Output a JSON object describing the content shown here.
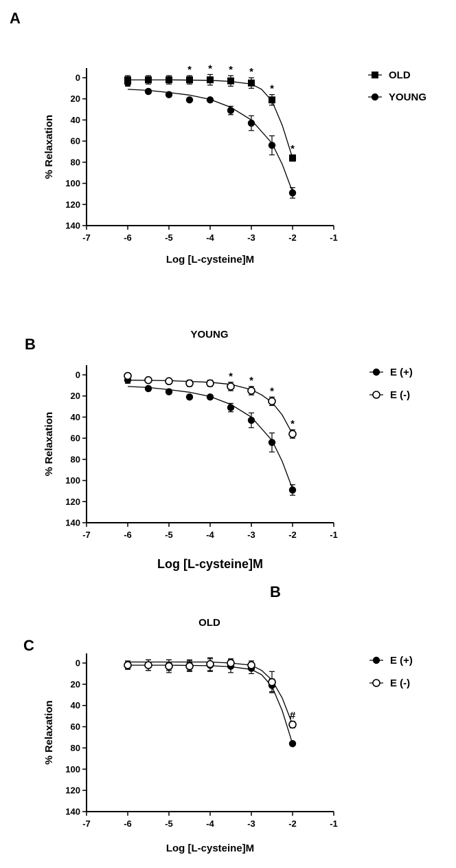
{
  "stray_label": "B",
  "chart_data": [
    {
      "id": "A",
      "type": "line",
      "panel_label": "A",
      "title": "",
      "xlabel": "Log [L-cysteine]M",
      "ylabel": "% Relaxation",
      "xlim": [
        -7,
        -1
      ],
      "ylim": [
        0,
        140
      ],
      "y_inverted": true,
      "xticks": [
        -7,
        -6,
        -5,
        -4,
        -3,
        -2,
        -1
      ],
      "yticks": [
        0,
        20,
        40,
        60,
        80,
        100,
        120,
        140
      ],
      "series": [
        {
          "name": "OLD",
          "marker": "square",
          "x": [
            -6,
            -5.5,
            -5,
            -4.5,
            -4,
            -3.5,
            -3,
            -2.5,
            -2
          ],
          "y": [
            2,
            2,
            2,
            2,
            2,
            3,
            5,
            21,
            76
          ],
          "err": [
            4,
            4,
            4,
            4,
            5,
            5,
            5,
            5,
            3
          ],
          "annotations": [
            "",
            "",
            "",
            "*",
            "*",
            "*",
            "*",
            "*",
            "*"
          ],
          "fit": [
            [
              -6,
              2
            ],
            [
              -5,
              2
            ],
            [
              -4,
              2.5
            ],
            [
              -3.5,
              3.5
            ],
            [
              -3,
              6
            ],
            [
              -2.75,
              11
            ],
            [
              -2.5,
              22
            ],
            [
              -2.25,
              45
            ],
            [
              -2,
              76
            ]
          ]
        },
        {
          "name": "YOUNG",
          "marker": "circle-filled",
          "x": [
            -6,
            -5.5,
            -5,
            -4.5,
            -4,
            -3.5,
            -3,
            -2.5,
            -2
          ],
          "y": [
            5,
            13,
            16,
            21,
            21,
            31,
            43,
            64,
            109
          ],
          "err": [
            3,
            2,
            2,
            2,
            2,
            4,
            7,
            9,
            5
          ],
          "annotations": [
            "",
            "",
            "",
            "",
            "",
            "",
            "",
            "",
            ""
          ],
          "fit": [
            [
              -6,
              11
            ],
            [
              -5.5,
              12
            ],
            [
              -5,
              14
            ],
            [
              -4.5,
              16.5
            ],
            [
              -4,
              20.5
            ],
            [
              -3.5,
              28
            ],
            [
              -3,
              40
            ],
            [
              -2.5,
              62
            ],
            [
              -2.25,
              82
            ],
            [
              -2,
              108
            ]
          ]
        }
      ]
    },
    {
      "id": "B",
      "type": "line",
      "panel_label": "B",
      "title": "YOUNG",
      "xlabel": "Log [L-cysteine]M",
      "ylabel": "% Relaxation",
      "xlim": [
        -7,
        -1
      ],
      "ylim": [
        0,
        140
      ],
      "y_inverted": true,
      "xticks": [
        -7,
        -6,
        -5,
        -4,
        -3,
        -2,
        -1
      ],
      "yticks": [
        0,
        20,
        40,
        60,
        80,
        100,
        120,
        140
      ],
      "series": [
        {
          "name": "E (+)",
          "marker": "circle-filled",
          "x": [
            -6,
            -5.5,
            -5,
            -4.5,
            -4,
            -3.5,
            -3,
            -2.5,
            -2
          ],
          "y": [
            5,
            13,
            16,
            21,
            21,
            31,
            43,
            64,
            109
          ],
          "err": [
            3,
            2,
            2,
            2,
            2,
            4,
            7,
            9,
            5
          ],
          "annotations": [
            "",
            "",
            "",
            "",
            "",
            "",
            "",
            "",
            ""
          ],
          "fit": [
            [
              -6,
              11
            ],
            [
              -5.5,
              12
            ],
            [
              -5,
              14
            ],
            [
              -4.5,
              16.5
            ],
            [
              -4,
              20.5
            ],
            [
              -3.5,
              28
            ],
            [
              -3,
              40
            ],
            [
              -2.5,
              62
            ],
            [
              -2.25,
              82
            ],
            [
              -2,
              108
            ]
          ]
        },
        {
          "name": "E (-)",
          "marker": "circle-open",
          "x": [
            -6,
            -5.5,
            -5,
            -4.5,
            -4,
            -3.5,
            -3,
            -2.5,
            -2
          ],
          "y": [
            1,
            5,
            6,
            8,
            8,
            11,
            15,
            25,
            56
          ],
          "err": [
            2,
            2,
            2,
            3,
            3,
            4,
            4,
            4,
            4
          ],
          "annotations": [
            "",
            "",
            "",
            "",
            "",
            "*",
            "*",
            "*",
            "*"
          ],
          "fit": [
            [
              -6,
              5
            ],
            [
              -5,
              5.5
            ],
            [
              -4,
              7
            ],
            [
              -3.5,
              9
            ],
            [
              -3,
              14
            ],
            [
              -2.75,
              19
            ],
            [
              -2.5,
              26
            ],
            [
              -2.25,
              38
            ],
            [
              -2,
              56
            ]
          ]
        }
      ]
    },
    {
      "id": "C",
      "type": "line",
      "panel_label": "C",
      "title": "OLD",
      "xlabel": "Log [L-cysteine]M",
      "ylabel": "% Relaxation",
      "xlim": [
        -7,
        -1
      ],
      "ylim": [
        0,
        140
      ],
      "y_inverted": true,
      "xticks": [
        -7,
        -6,
        -5,
        -4,
        -3,
        -2,
        -1
      ],
      "yticks": [
        0,
        20,
        40,
        60,
        80,
        100,
        120,
        140
      ],
      "series": [
        {
          "name": "E (+)",
          "marker": "circle-filled",
          "x": [
            -6,
            -5.5,
            -5,
            -4.5,
            -4,
            -3.5,
            -3,
            -2.5,
            -2
          ],
          "y": [
            2,
            2,
            2,
            2,
            2,
            3,
            5,
            21,
            76
          ],
          "err": [
            4,
            5,
            5,
            5,
            6,
            6,
            5,
            6,
            2
          ],
          "annotations": [
            "",
            "",
            "",
            "",
            "",
            "",
            "",
            "",
            ""
          ],
          "fit": [
            [
              -6,
              2
            ],
            [
              -5,
              2
            ],
            [
              -4,
              2.5
            ],
            [
              -3.5,
              3.5
            ],
            [
              -3,
              6
            ],
            [
              -2.75,
              11
            ],
            [
              -2.5,
              22
            ],
            [
              -2.25,
              45
            ],
            [
              -2,
              76
            ]
          ]
        },
        {
          "name": "E (-)",
          "marker": "circle-open",
          "x": [
            -6,
            -5.5,
            -5,
            -4.5,
            -4,
            -3.5,
            -3,
            -2.5,
            -2
          ],
          "y": [
            2,
            2,
            3,
            3,
            1,
            0,
            2,
            18,
            58
          ],
          "err": [
            3,
            5,
            6,
            5,
            6,
            4,
            4,
            10,
            3
          ],
          "annotations": [
            "",
            "",
            "",
            "",
            "",
            "",
            "",
            "",
            "#"
          ],
          "fit": [
            [
              -6,
              -1
            ],
            [
              -5,
              -1
            ],
            [
              -4,
              -1
            ],
            [
              -3.5,
              0
            ],
            [
              -3,
              2
            ],
            [
              -2.75,
              7
            ],
            [
              -2.5,
              16
            ],
            [
              -2.25,
              33
            ],
            [
              -2,
              58
            ]
          ]
        }
      ]
    }
  ]
}
